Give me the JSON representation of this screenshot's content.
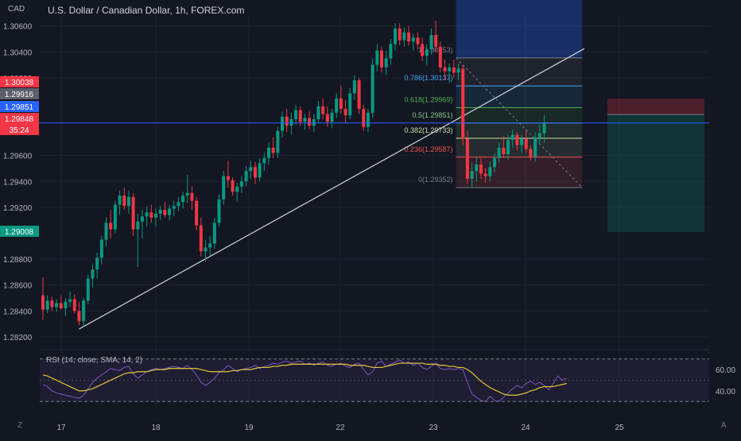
{
  "chart_data": {
    "type": "candlestick",
    "currency": "CAD",
    "title": "U.S. Dollar / Canadian Dollar, 1h, FOREX.com",
    "ylim": [
      1.2815,
      1.3069
    ],
    "price_ticks": [
      "1.30600",
      "1.30400",
      "1.30200",
      "1.29600",
      "1.29400",
      "1.29200",
      "1.28800",
      "1.28600",
      "1.28400",
      "1.28200"
    ],
    "date_ticks": [
      "17",
      "18",
      "19",
      "22",
      "23",
      "24",
      "25"
    ],
    "price_tags": [
      {
        "label": "1.30038",
        "value": 1.30038,
        "color": "#f23645"
      },
      {
        "label": "1.29916",
        "value": 1.29916,
        "color": "#5d606b"
      },
      {
        "label": "1.29851",
        "value": 1.29851,
        "color": "#2962ff"
      },
      {
        "label": "1.29848",
        "value": 1.29848,
        "countdown": "35:24",
        "color": "#f23645"
      },
      {
        "label": "1.29008",
        "value": 1.29008,
        "color": "#089981"
      }
    ],
    "candles": [
      {
        "o": 1.2852,
        "h": 1.2866,
        "l": 1.2833,
        "c": 1.2841
      },
      {
        "o": 1.2841,
        "h": 1.2852,
        "l": 1.2838,
        "c": 1.2848
      },
      {
        "o": 1.2848,
        "h": 1.2851,
        "l": 1.284,
        "c": 1.2843
      },
      {
        "o": 1.2843,
        "h": 1.2849,
        "l": 1.2839,
        "c": 1.2846
      },
      {
        "o": 1.2846,
        "h": 1.2852,
        "l": 1.2841,
        "c": 1.2842
      },
      {
        "o": 1.2842,
        "h": 1.285,
        "l": 1.2836,
        "c": 1.2847
      },
      {
        "o": 1.2847,
        "h": 1.2855,
        "l": 1.2843,
        "c": 1.2849
      },
      {
        "o": 1.2849,
        "h": 1.2853,
        "l": 1.2838,
        "c": 1.284
      },
      {
        "o": 1.284,
        "h": 1.2847,
        "l": 1.2829,
        "c": 1.2832
      },
      {
        "o": 1.2832,
        "h": 1.285,
        "l": 1.2828,
        "c": 1.2848
      },
      {
        "o": 1.2848,
        "h": 1.2868,
        "l": 1.2845,
        "c": 1.2865
      },
      {
        "o": 1.2865,
        "h": 1.2876,
        "l": 1.2858,
        "c": 1.2872
      },
      {
        "o": 1.2872,
        "h": 1.2885,
        "l": 1.2865,
        "c": 1.2881
      },
      {
        "o": 1.2881,
        "h": 1.2898,
        "l": 1.2876,
        "c": 1.2895
      },
      {
        "o": 1.2895,
        "h": 1.2912,
        "l": 1.289,
        "c": 1.2908
      },
      {
        "o": 1.2908,
        "h": 1.2918,
        "l": 1.2896,
        "c": 1.2903
      },
      {
        "o": 1.2903,
        "h": 1.2925,
        "l": 1.29,
        "c": 1.2922
      },
      {
        "o": 1.2922,
        "h": 1.2933,
        "l": 1.2914,
        "c": 1.2929
      },
      {
        "o": 1.2929,
        "h": 1.2935,
        "l": 1.2918,
        "c": 1.2921
      },
      {
        "o": 1.2921,
        "h": 1.2933,
        "l": 1.2915,
        "c": 1.2928
      },
      {
        "o": 1.2928,
        "h": 1.2931,
        "l": 1.2898,
        "c": 1.2903
      },
      {
        "o": 1.2903,
        "h": 1.2915,
        "l": 1.2874,
        "c": 1.2909
      },
      {
        "o": 1.2909,
        "h": 1.2918,
        "l": 1.2896,
        "c": 1.2913
      },
      {
        "o": 1.2913,
        "h": 1.2921,
        "l": 1.2905,
        "c": 1.2916
      },
      {
        "o": 1.2916,
        "h": 1.2922,
        "l": 1.2908,
        "c": 1.2912
      },
      {
        "o": 1.2912,
        "h": 1.2919,
        "l": 1.2905,
        "c": 1.2915
      },
      {
        "o": 1.2915,
        "h": 1.2921,
        "l": 1.291,
        "c": 1.2918
      },
      {
        "o": 1.2918,
        "h": 1.2924,
        "l": 1.2912,
        "c": 1.2914
      },
      {
        "o": 1.2914,
        "h": 1.2922,
        "l": 1.291,
        "c": 1.2919
      },
      {
        "o": 1.2919,
        "h": 1.2925,
        "l": 1.2913,
        "c": 1.2921
      },
      {
        "o": 1.2921,
        "h": 1.2928,
        "l": 1.2917,
        "c": 1.2924
      },
      {
        "o": 1.2924,
        "h": 1.2932,
        "l": 1.2919,
        "c": 1.2929
      },
      {
        "o": 1.2929,
        "h": 1.2945,
        "l": 1.2923,
        "c": 1.2931
      },
      {
        "o": 1.2931,
        "h": 1.2936,
        "l": 1.2918,
        "c": 1.2925
      },
      {
        "o": 1.2925,
        "h": 1.2928,
        "l": 1.2902,
        "c": 1.2906
      },
      {
        "o": 1.2906,
        "h": 1.2912,
        "l": 1.2882,
        "c": 1.2886
      },
      {
        "o": 1.2886,
        "h": 1.2895,
        "l": 1.2878,
        "c": 1.2889
      },
      {
        "o": 1.2889,
        "h": 1.2898,
        "l": 1.2882,
        "c": 1.2892
      },
      {
        "o": 1.2892,
        "h": 1.2912,
        "l": 1.2888,
        "c": 1.2908
      },
      {
        "o": 1.2908,
        "h": 1.293,
        "l": 1.2905,
        "c": 1.2926
      },
      {
        "o": 1.2926,
        "h": 1.2948,
        "l": 1.2922,
        "c": 1.2944
      },
      {
        "o": 1.2944,
        "h": 1.2956,
        "l": 1.2935,
        "c": 1.2941
      },
      {
        "o": 1.2941,
        "h": 1.2943,
        "l": 1.2929,
        "c": 1.2932
      },
      {
        "o": 1.2932,
        "h": 1.2939,
        "l": 1.2924,
        "c": 1.2936
      },
      {
        "o": 1.2936,
        "h": 1.2944,
        "l": 1.2931,
        "c": 1.294
      },
      {
        "o": 1.294,
        "h": 1.2952,
        "l": 1.2936,
        "c": 1.2948
      },
      {
        "o": 1.2948,
        "h": 1.2956,
        "l": 1.2942,
        "c": 1.2951
      },
      {
        "o": 1.2951,
        "h": 1.2955,
        "l": 1.2938,
        "c": 1.2943
      },
      {
        "o": 1.2943,
        "h": 1.2958,
        "l": 1.294,
        "c": 1.2954
      },
      {
        "o": 1.2954,
        "h": 1.2962,
        "l": 1.2948,
        "c": 1.2958
      },
      {
        "o": 1.2958,
        "h": 1.297,
        "l": 1.2953,
        "c": 1.2966
      },
      {
        "o": 1.2966,
        "h": 1.2974,
        "l": 1.2958,
        "c": 1.2962
      },
      {
        "o": 1.2962,
        "h": 1.2982,
        "l": 1.2958,
        "c": 1.2979
      },
      {
        "o": 1.2979,
        "h": 1.2994,
        "l": 1.2974,
        "c": 1.299
      },
      {
        "o": 1.299,
        "h": 1.2996,
        "l": 1.2978,
        "c": 1.2983
      },
      {
        "o": 1.2983,
        "h": 1.2993,
        "l": 1.2976,
        "c": 1.2988
      },
      {
        "o": 1.2988,
        "h": 1.2999,
        "l": 1.2984,
        "c": 1.2995
      },
      {
        "o": 1.2995,
        "h": 1.2998,
        "l": 1.2983,
        "c": 1.2986
      },
      {
        "o": 1.2986,
        "h": 1.2992,
        "l": 1.298,
        "c": 1.2989
      },
      {
        "o": 1.2989,
        "h": 1.2994,
        "l": 1.298,
        "c": 1.2983
      },
      {
        "o": 1.2983,
        "h": 1.2992,
        "l": 1.2978,
        "c": 1.2988
      },
      {
        "o": 1.2988,
        "h": 1.3002,
        "l": 1.2985,
        "c": 1.2998
      },
      {
        "o": 1.2998,
        "h": 1.3004,
        "l": 1.2988,
        "c": 1.2992
      },
      {
        "o": 1.2992,
        "h": 1.2998,
        "l": 1.2982,
        "c": 1.2986
      },
      {
        "o": 1.2986,
        "h": 1.2996,
        "l": 1.2981,
        "c": 1.2993
      },
      {
        "o": 1.2993,
        "h": 1.3008,
        "l": 1.2989,
        "c": 1.3004
      },
      {
        "o": 1.3004,
        "h": 1.3014,
        "l": 1.2992,
        "c": 1.2996
      },
      {
        "o": 1.2996,
        "h": 1.3003,
        "l": 1.2985,
        "c": 1.2991
      },
      {
        "o": 1.2991,
        "h": 1.3012,
        "l": 1.2988,
        "c": 1.3008
      },
      {
        "o": 1.3008,
        "h": 1.3022,
        "l": 1.3003,
        "c": 1.3018
      },
      {
        "o": 1.3018,
        "h": 1.302,
        "l": 1.2992,
        "c": 1.2996
      },
      {
        "o": 1.2996,
        "h": 1.2999,
        "l": 1.2979,
        "c": 1.2982
      },
      {
        "o": 1.2982,
        "h": 1.2996,
        "l": 1.2978,
        "c": 1.2993
      },
      {
        "o": 1.2993,
        "h": 1.3035,
        "l": 1.2989,
        "c": 1.303
      },
      {
        "o": 1.303,
        "h": 1.3046,
        "l": 1.3025,
        "c": 1.3041
      },
      {
        "o": 1.3041,
        "h": 1.3044,
        "l": 1.3024,
        "c": 1.3028
      },
      {
        "o": 1.3028,
        "h": 1.3041,
        "l": 1.3022,
        "c": 1.3035
      },
      {
        "o": 1.3035,
        "h": 1.305,
        "l": 1.303,
        "c": 1.3046
      },
      {
        "o": 1.3046,
        "h": 1.3062,
        "l": 1.3041,
        "c": 1.3058
      },
      {
        "o": 1.3058,
        "h": 1.3062,
        "l": 1.3045,
        "c": 1.3049
      },
      {
        "o": 1.3049,
        "h": 1.3059,
        "l": 1.3044,
        "c": 1.3055
      },
      {
        "o": 1.3055,
        "h": 1.306,
        "l": 1.3045,
        "c": 1.3048
      },
      {
        "o": 1.3048,
        "h": 1.3054,
        "l": 1.3041,
        "c": 1.3051
      },
      {
        "o": 1.3051,
        "h": 1.3055,
        "l": 1.3042,
        "c": 1.3046
      },
      {
        "o": 1.3046,
        "h": 1.3051,
        "l": 1.3033,
        "c": 1.3037
      },
      {
        "o": 1.3037,
        "h": 1.3046,
        "l": 1.303,
        "c": 1.3042
      },
      {
        "o": 1.3042,
        "h": 1.3058,
        "l": 1.3038,
        "c": 1.3053
      },
      {
        "o": 1.3053,
        "h": 1.3064,
        "l": 1.304,
        "c": 1.3044
      },
      {
        "o": 1.3044,
        "h": 1.3048,
        "l": 1.3024,
        "c": 1.3028
      },
      {
        "o": 1.3028,
        "h": 1.3034,
        "l": 1.3018,
        "c": 1.3025
      },
      {
        "o": 1.3025,
        "h": 1.3031,
        "l": 1.3016,
        "c": 1.3028
      },
      {
        "o": 1.3028,
        "h": 1.3034,
        "l": 1.302,
        "c": 1.3024
      },
      {
        "o": 1.3024,
        "h": 1.3031,
        "l": 1.3018,
        "c": 1.3027
      },
      {
        "o": 1.3027,
        "h": 1.303,
        "l": 1.2968,
        "c": 1.2973
      },
      {
        "o": 1.2973,
        "h": 1.2979,
        "l": 1.2938,
        "c": 1.2942
      },
      {
        "o": 1.2942,
        "h": 1.2954,
        "l": 1.2935,
        "c": 1.2948
      },
      {
        "o": 1.2948,
        "h": 1.2959,
        "l": 1.294,
        "c": 1.2953
      },
      {
        "o": 1.2953,
        "h": 1.2958,
        "l": 1.2942,
        "c": 1.2946
      },
      {
        "o": 1.2946,
        "h": 1.295,
        "l": 1.2939,
        "c": 1.2944
      },
      {
        "o": 1.2944,
        "h": 1.2955,
        "l": 1.294,
        "c": 1.2951
      },
      {
        "o": 1.2951,
        "h": 1.2962,
        "l": 1.2947,
        "c": 1.2958
      },
      {
        "o": 1.2958,
        "h": 1.297,
        "l": 1.2954,
        "c": 1.2966
      },
      {
        "o": 1.2966,
        "h": 1.2975,
        "l": 1.2958,
        "c": 1.2961
      },
      {
        "o": 1.2961,
        "h": 1.2976,
        "l": 1.2957,
        "c": 1.2972
      },
      {
        "o": 1.2972,
        "h": 1.298,
        "l": 1.2966,
        "c": 1.2976
      },
      {
        "o": 1.2976,
        "h": 1.2978,
        "l": 1.2964,
        "c": 1.2968
      },
      {
        "o": 1.2968,
        "h": 1.2976,
        "l": 1.2962,
        "c": 1.2973
      },
      {
        "o": 1.2973,
        "h": 1.2979,
        "l": 1.2962,
        "c": 1.2965
      },
      {
        "o": 1.2965,
        "h": 1.2968,
        "l": 1.2956,
        "c": 1.2959
      },
      {
        "o": 1.2959,
        "h": 1.2978,
        "l": 1.2955,
        "c": 1.2974
      },
      {
        "o": 1.2974,
        "h": 1.2984,
        "l": 1.2969,
        "c": 1.2977
      },
      {
        "o": 1.2977,
        "h": 1.2991,
        "l": 1.297,
        "c": 1.2985
      }
    ],
    "trendline": {
      "from": [
        8,
        1.2826
      ],
      "to": [
        118,
        1.30425
      ]
    },
    "horizontal_line": {
      "value": 1.29851,
      "color": "#2962ff"
    },
    "fibonacci": {
      "start_index": 92,
      "end_index": 118,
      "levels": [
        {
          "label": "1(1.30353)",
          "value": 1.30353,
          "color": "#787b86"
        },
        {
          "label": "0.786(1.30137)",
          "value": 1.30137,
          "color": "#42a5f5"
        },
        {
          "label": "0.618(1.29969)",
          "value": 1.29969,
          "color": "#4caf50"
        },
        {
          "label": "0.5(1.29851)",
          "value": 1.29851,
          "color": "#81c784"
        },
        {
          "label": "0.382(1.29733)",
          "value": 1.29733,
          "color": "#c5e1a5"
        },
        {
          "label": "0.236(1.29587)",
          "value": 1.29587,
          "color": "#ef5350"
        },
        {
          "label": "0(1.29352)",
          "value": 1.29352,
          "color": "#787b86"
        }
      ]
    },
    "fib_blue_box_top": 1.307,
    "position_tool": {
      "entry": 1.29916,
      "stop": 1.30038,
      "target": 1.29008
    },
    "rsi": {
      "label": "RSI (14, close, SMA, 14, 2)",
      "ticks": [
        "60.00",
        "40.00"
      ],
      "bands": [
        70,
        30
      ],
      "ylim": [
        25,
        75
      ],
      "values": [
        46,
        44,
        40,
        38,
        37,
        36,
        35,
        34,
        33,
        36,
        42,
        48,
        52,
        55,
        58,
        61,
        60,
        59,
        62,
        63,
        56,
        52,
        55,
        58,
        60,
        61,
        60,
        61,
        62,
        63,
        62,
        61,
        64,
        60,
        55,
        48,
        45,
        48,
        52,
        57,
        60,
        64,
        61,
        58,
        60,
        61,
        62,
        64,
        61,
        63,
        64,
        66,
        65,
        67,
        68,
        66,
        67,
        68,
        65,
        66,
        64,
        66,
        67,
        64,
        63,
        65,
        66,
        63,
        62,
        65,
        66,
        60,
        55,
        58,
        66,
        68,
        63,
        65,
        67,
        69,
        66,
        67,
        64,
        66,
        62,
        60,
        63,
        66,
        61,
        60,
        61,
        60,
        61,
        60,
        48,
        37,
        34,
        31,
        30,
        35,
        31,
        30,
        34,
        38,
        42,
        45,
        43,
        47,
        49,
        46,
        48,
        45,
        41,
        47,
        54,
        50,
        52
      ],
      "sma_values": [
        55,
        54,
        52,
        50,
        48,
        46,
        44,
        42,
        40,
        40,
        41,
        42,
        44,
        46,
        48,
        50,
        52,
        54,
        56,
        57,
        57,
        58,
        58,
        58,
        59,
        60,
        60,
        60,
        61,
        61,
        61,
        61,
        61,
        61,
        61,
        60,
        59,
        58,
        58,
        58,
        58,
        58,
        59,
        59,
        60,
        60,
        60,
        61,
        62,
        62,
        62,
        63,
        63,
        64,
        64,
        65,
        65,
        65,
        65,
        65,
        65,
        65,
        65,
        65,
        65,
        65,
        65,
        65,
        64,
        64,
        64,
        64,
        63,
        62,
        62,
        62,
        63,
        64,
        65,
        66,
        66,
        66,
        66,
        66,
        66,
        65,
        65,
        65,
        64,
        64,
        63,
        63,
        62,
        62,
        60,
        57,
        53,
        49,
        46,
        43,
        41,
        39,
        37,
        36,
        36,
        36,
        37,
        38,
        40,
        41,
        43,
        44,
        44,
        44,
        45,
        46,
        47
      ]
    }
  }
}
